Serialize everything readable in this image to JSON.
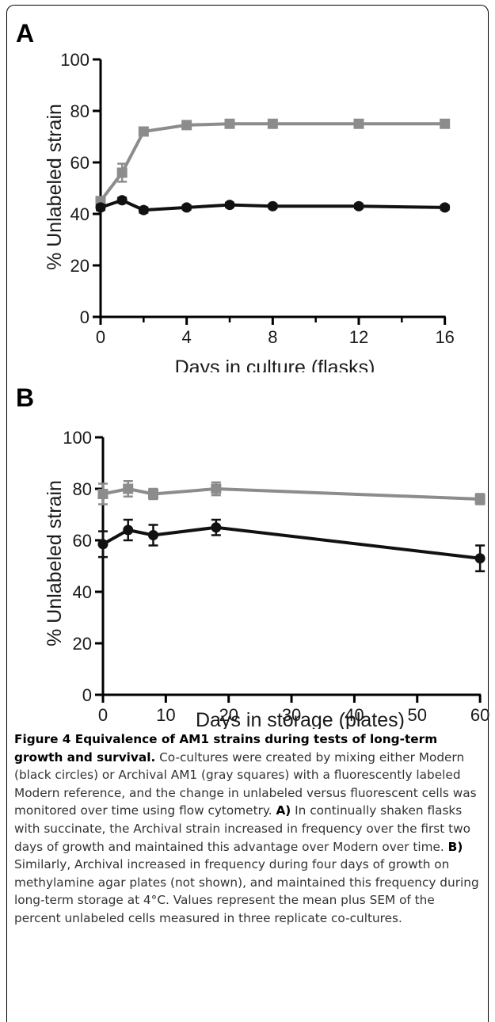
{
  "chart_data": [
    {
      "type": "line",
      "panel": "A",
      "xlabel": "Days in culture (flasks)",
      "ylabel": "% Unlabeled strain",
      "xlim": [
        0,
        17.3
      ],
      "ylim": [
        0,
        100
      ],
      "xticks": [
        0,
        4,
        8,
        12,
        16
      ],
      "xminor": [
        2,
        6,
        10,
        14
      ],
      "yticks": [
        0,
        20,
        40,
        60,
        80,
        100
      ],
      "grid": false,
      "series": [
        {
          "marker": "square",
          "color": "#8c8c8c",
          "x": [
            0,
            1,
            2,
            4,
            6,
            8,
            12,
            16
          ],
          "y": [
            45,
            56,
            72,
            74.5,
            75,
            75,
            75,
            75
          ],
          "err": [
            1.5,
            3.5,
            1.5,
            1,
            1,
            1,
            1,
            1
          ]
        },
        {
          "marker": "circle",
          "color": "#111111",
          "x": [
            0,
            1,
            2,
            4,
            6,
            8,
            12,
            16
          ],
          "y": [
            42.5,
            45.3,
            41.5,
            42.5,
            43.5,
            43,
            43,
            42.5
          ],
          "err": [
            1,
            1,
            1,
            0.8,
            0.8,
            0.8,
            0.8,
            0.8
          ]
        }
      ]
    },
    {
      "type": "line",
      "panel": "B",
      "xlabel": "Days in storage (plates)",
      "ylabel": "% Unlabeled strain",
      "xlim": [
        0,
        62
      ],
      "ylim": [
        0,
        100
      ],
      "xticks": [
        0,
        10,
        20,
        30,
        40,
        50,
        60
      ],
      "xminor": [],
      "yticks": [
        0,
        20,
        40,
        60,
        80,
        100
      ],
      "grid": false,
      "series": [
        {
          "marker": "square",
          "color": "#8c8c8c",
          "x": [
            0,
            4,
            8,
            18,
            60
          ],
          "y": [
            78,
            80,
            78,
            80,
            76
          ],
          "err": [
            4,
            3,
            2,
            2.5,
            2
          ]
        },
        {
          "marker": "circle",
          "color": "#111111",
          "x": [
            0,
            4,
            8,
            18,
            60
          ],
          "y": [
            58.5,
            64,
            62,
            65,
            53
          ],
          "err": [
            5,
            4,
            4,
            3,
            5
          ]
        }
      ]
    }
  ],
  "caption": {
    "bold_title": "Figure 4 Equivalence of AM1 strains during tests of long-term growth and survival.",
    "text1": " Co-cultures were created by mixing either Modern (black circles) or Archival AM1 (gray squares) with a fluorescently labeled Modern reference, and the change in unlabeled versus fluorescent cells was monitored over time using flow cytometry. ",
    "label_a": "A)",
    "text2": " In continually shaken flasks with succinate, the Archival strain increased in frequency over the first two days of growth and maintained this advantage over Modern over time. ",
    "label_b": "B)",
    "text3": " Similarly, Archival increased in frequency during four days of growth on methylamine agar plates (not shown), and maintained this frequency during long-term storage at 4°C. Values represent the mean plus SEM of the percent unlabeled cells measured in three replicate co-cultures."
  }
}
